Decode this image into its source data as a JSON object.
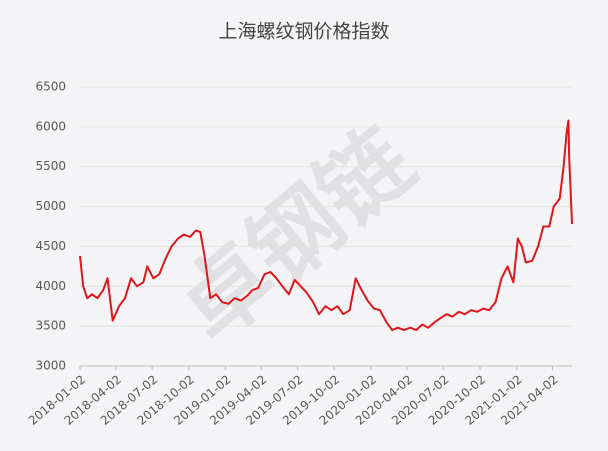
{
  "chart_data": {
    "type": "line",
    "title": "上海螺纹钢价格指数",
    "watermark": "卓钢链",
    "x": [
      "2018-01-02",
      "2018-01-10",
      "2018-01-20",
      "2018-02-01",
      "2018-02-15",
      "2018-03-01",
      "2018-03-12",
      "2018-03-25",
      "2018-04-10",
      "2018-04-25",
      "2018-05-10",
      "2018-05-25",
      "2018-06-10",
      "2018-06-20",
      "2018-07-05",
      "2018-07-20",
      "2018-08-05",
      "2018-08-20",
      "2018-09-05",
      "2018-09-20",
      "2018-10-05",
      "2018-10-20",
      "2018-10-31",
      "2018-11-10",
      "2018-11-25",
      "2018-12-10",
      "2018-12-25",
      "2019-01-10",
      "2019-01-25",
      "2019-02-10",
      "2019-02-25",
      "2019-03-10",
      "2019-03-25",
      "2019-04-10",
      "2019-04-25",
      "2019-05-10",
      "2019-05-25",
      "2019-06-10",
      "2019-06-25",
      "2019-07-10",
      "2019-07-25",
      "2019-08-10",
      "2019-08-25",
      "2019-09-10",
      "2019-09-25",
      "2019-10-10",
      "2019-10-25",
      "2019-11-10",
      "2019-11-25",
      "2019-12-10",
      "2019-12-25",
      "2020-01-10",
      "2020-01-25",
      "2020-02-10",
      "2020-02-25",
      "2020-03-10",
      "2020-03-25",
      "2020-04-10",
      "2020-04-25",
      "2020-05-10",
      "2020-05-25",
      "2020-06-10",
      "2020-06-25",
      "2020-07-10",
      "2020-07-25",
      "2020-08-10",
      "2020-08-25",
      "2020-09-10",
      "2020-09-25",
      "2020-10-10",
      "2020-10-25",
      "2020-11-10",
      "2020-11-25",
      "2020-12-10",
      "2020-12-25",
      "2021-01-05",
      "2021-01-15",
      "2021-01-25",
      "2021-02-10",
      "2021-02-25",
      "2021-03-10",
      "2021-03-25",
      "2021-04-05",
      "2021-04-20",
      "2021-04-30",
      "2021-05-07",
      "2021-05-12",
      "2021-05-14",
      "2021-05-18",
      "2021-05-21"
    ],
    "series": [
      {
        "color": "#e0161b",
        "values": [
          4380,
          4000,
          3850,
          3900,
          3850,
          3950,
          4100,
          3570,
          3750,
          3850,
          4100,
          4000,
          4050,
          4250,
          4100,
          4150,
          4350,
          4500,
          4600,
          4650,
          4620,
          4700,
          4680,
          4400,
          3850,
          3900,
          3800,
          3780,
          3850,
          3820,
          3880,
          3950,
          3980,
          4150,
          4180,
          4100,
          4000,
          3900,
          4080,
          4000,
          3920,
          3800,
          3650,
          3750,
          3700,
          3750,
          3650,
          3700,
          4100,
          3950,
          3820,
          3720,
          3700,
          3550,
          3450,
          3480,
          3450,
          3480,
          3450,
          3520,
          3480,
          3550,
          3600,
          3650,
          3620,
          3680,
          3650,
          3700,
          3680,
          3720,
          3700,
          3800,
          4100,
          4250,
          4050,
          4600,
          4500,
          4300,
          4320,
          4500,
          4750,
          4750,
          5000,
          5100,
          5500,
          5900,
          6080,
          5600,
          5150,
          4780
        ]
      }
    ],
    "xlim": [
      "2018-01-02",
      "2021-05-21"
    ],
    "xticks": [
      "2018-01-02",
      "2018-04-02",
      "2018-07-02",
      "2018-10-02",
      "2019-01-02",
      "2019-04-02",
      "2019-07-02",
      "2019-10-02",
      "2020-01-02",
      "2020-04-02",
      "2020-07-02",
      "2020-10-02",
      "2021-01-02",
      "2021-04-02"
    ],
    "ylim": [
      3000,
      6500
    ],
    "yticks": [
      3000,
      3500,
      4000,
      4500,
      5000,
      5500,
      6000,
      6500
    ],
    "grid": true
  }
}
